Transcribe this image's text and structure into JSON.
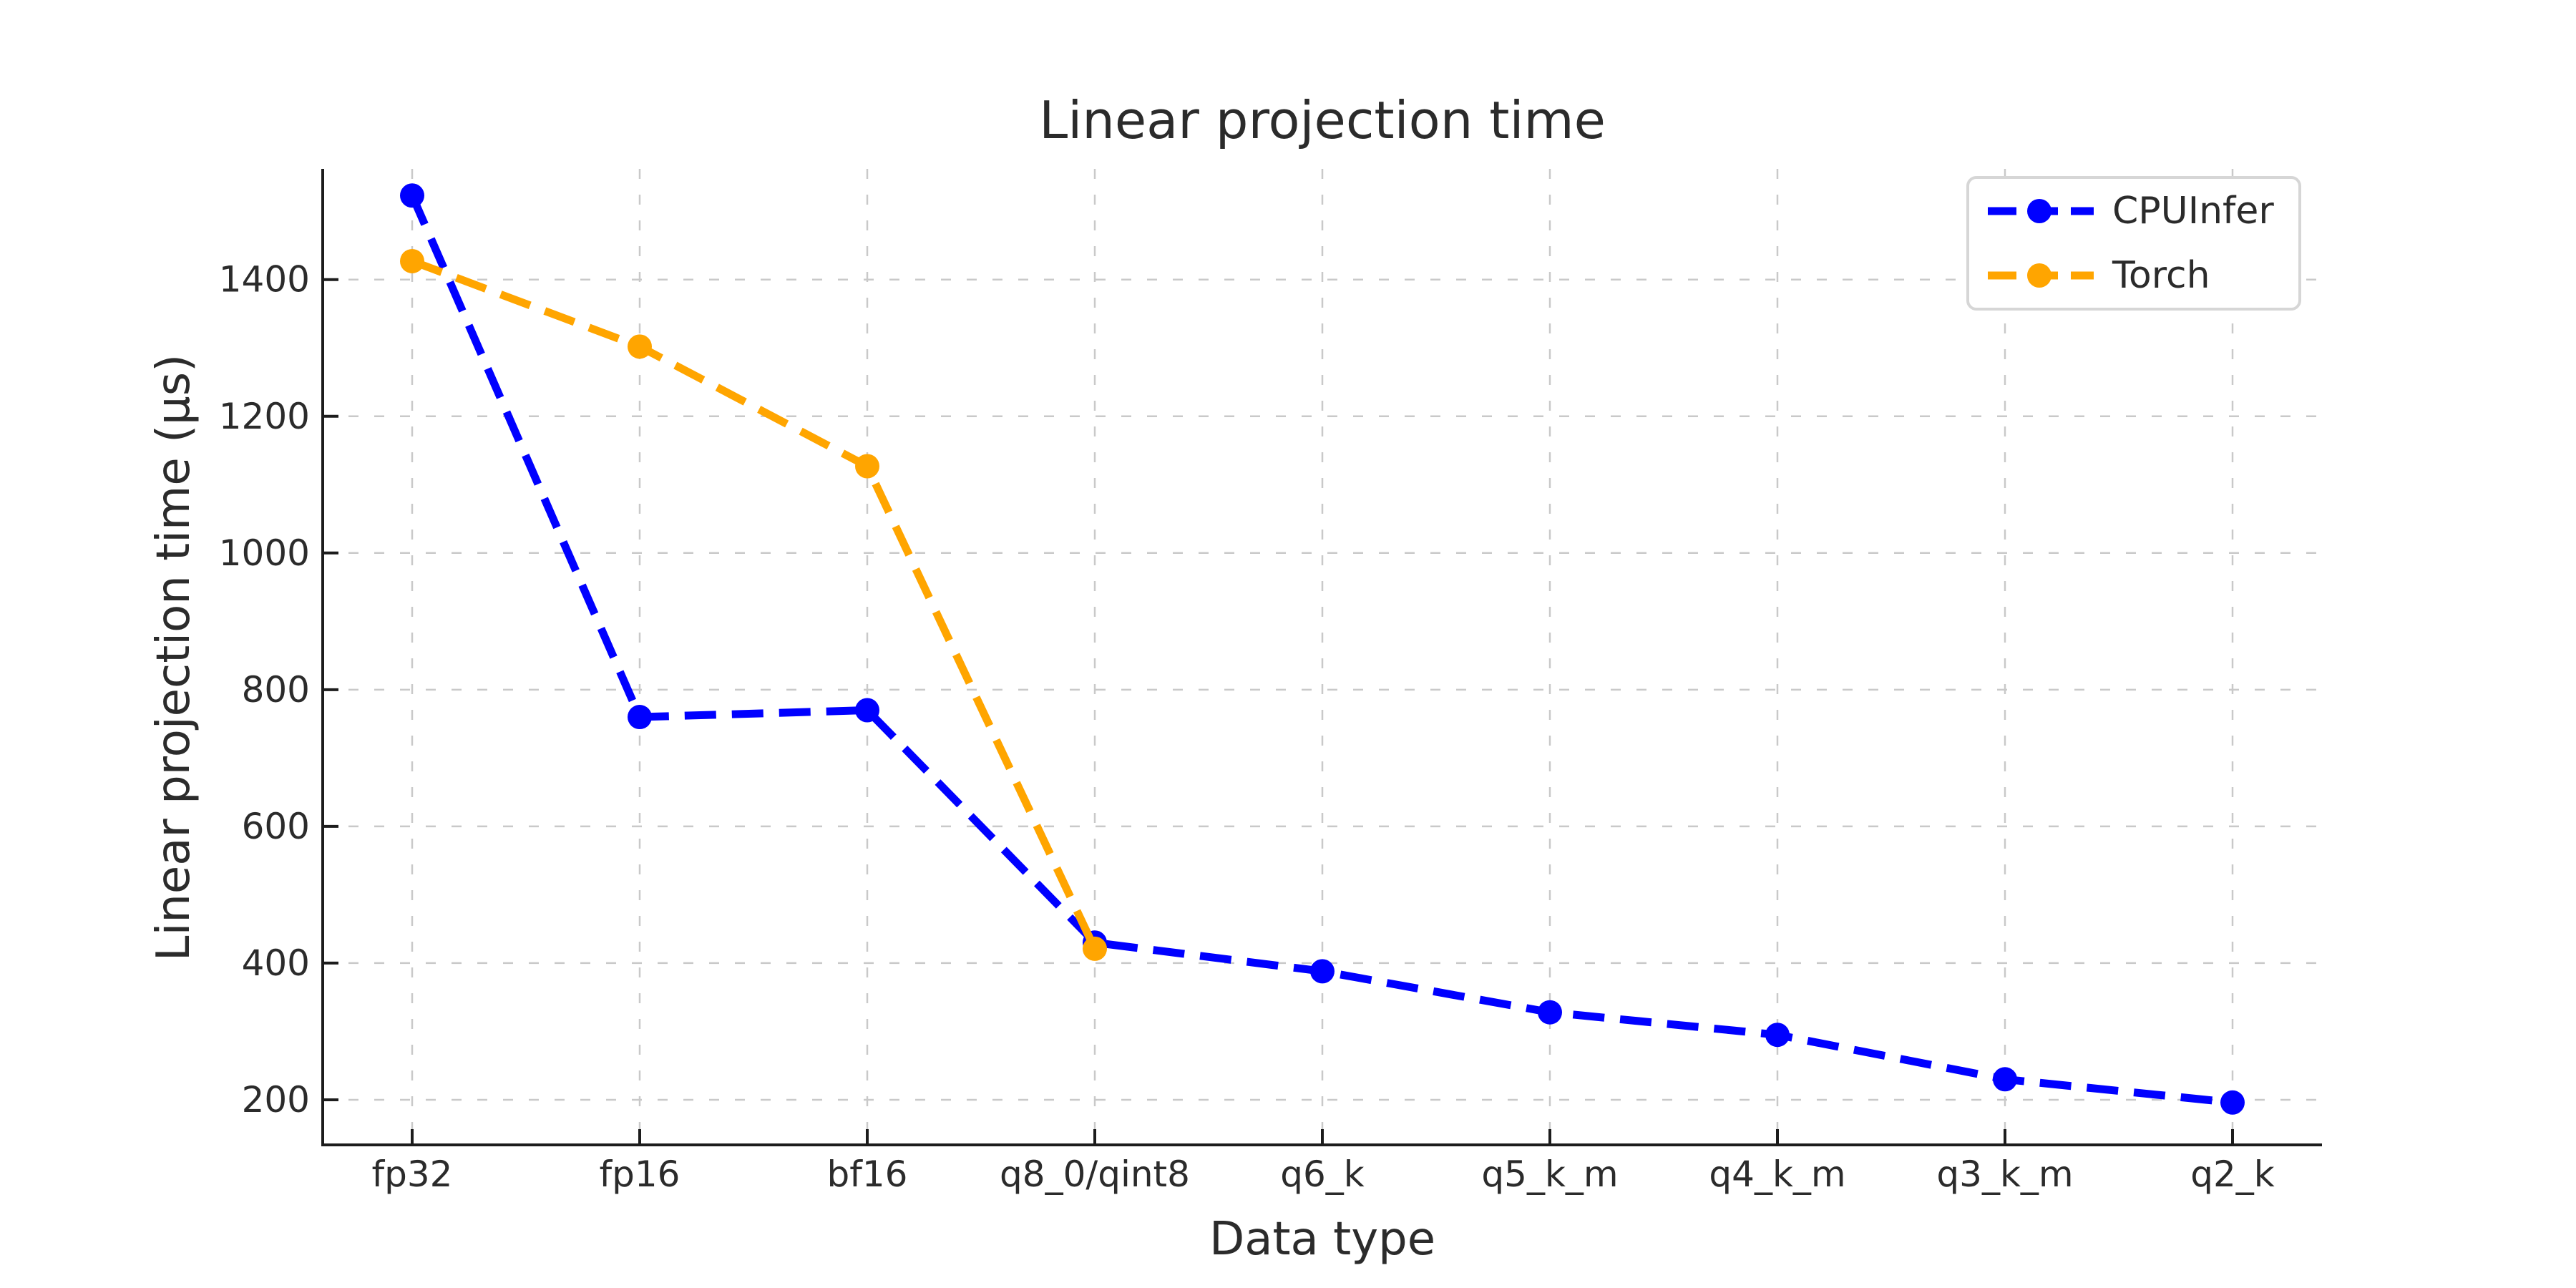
{
  "page": {
    "background": "#ffffff"
  },
  "chart_data": {
    "type": "line",
    "title": "Linear projection time",
    "xlabel": "Data type",
    "ylabel": "Linear projection time (μs)",
    "categories": [
      "fp32",
      "fp16",
      "bf16",
      "q8_0/qint8",
      "q6_k",
      "q5_k_m",
      "q4_k_m",
      "q3_k_m",
      "q2_k"
    ],
    "series": [
      {
        "name": "CPUInfer",
        "color": "#0000ff",
        "line_style": "dashed",
        "marker": "circle",
        "values": [
          1523,
          760,
          770,
          430,
          388,
          328,
          295,
          230,
          196
        ]
      },
      {
        "name": "Torch",
        "color": "#ffa500",
        "line_style": "dashed",
        "marker": "circle",
        "values": [
          1427,
          1302,
          1127,
          421,
          null,
          null,
          null,
          null,
          null
        ]
      }
    ],
    "y_ticks": [
      200,
      400,
      600,
      800,
      1000,
      1200,
      1400
    ],
    "ylim": [
      134,
      1562
    ],
    "grid": true,
    "grid_style": "dashed",
    "legend_position": "upper right",
    "axis_color": "#1c1c1c",
    "text_color": "#2b2b2b",
    "grid_color": "#c9c9c9"
  }
}
